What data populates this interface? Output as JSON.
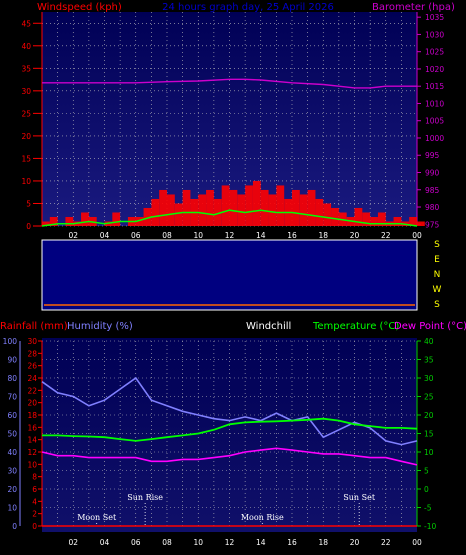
{
  "header_top": {
    "windspeed_label": "Windspeed (kph)",
    "date_label": "24 hours graph day, 25 April 2026",
    "barometer_label": "Barometer (hpa)"
  },
  "header_bottom": {
    "rainfall_label": "Rainfall (mm)",
    "humidity_label": "Humidity (%)",
    "windchill_label": "Windchill",
    "temperature_label": "Temperature (°C)",
    "dewpoint_label": "Dew Point (°C)"
  },
  "direction_labels": [
    "S",
    "E",
    "N",
    "W",
    "S"
  ],
  "events": [
    {
      "label": "Sun Rise",
      "time": 6.6
    },
    {
      "label": "Sun Set",
      "time": 20.3
    },
    {
      "label": "Moon Set",
      "time": 3.5
    },
    {
      "label": "Moon Rise",
      "time": 14.1
    }
  ],
  "colors": {
    "background": "#000000",
    "plot_bg_top": "#000066",
    "plot_bg_bottom": "#0a0a5a",
    "windspeed_gust": "#ff0000",
    "windspeed_avg": "#00ff00",
    "wind_calm": "#ffffff",
    "barometer": "#cc00cc",
    "humidity": "#8080ff",
    "temperature": "#00ff00",
    "dewpoint": "#ff00ff",
    "rain": "#ff0000",
    "date_text": "#0000cc",
    "direction_text": "#ffff00",
    "temp_axis": "#00cc00",
    "grid": "#c0c0c0"
  },
  "chart_data": [
    {
      "type": "line",
      "name": "wind-barometer",
      "x_ticks": [
        "02",
        "04",
        "06",
        "08",
        "10",
        "12",
        "14",
        "16",
        "18",
        "20",
        "22",
        "00"
      ],
      "x_range": [
        0,
        24
      ],
      "y_left_ticks": [
        "0",
        "5",
        "10",
        "15",
        "20",
        "25",
        "30",
        "35",
        "40",
        "45"
      ],
      "y_left_range": [
        0,
        47.5
      ],
      "y_right_ticks": [
        "975",
        "980",
        "985",
        "990",
        "995",
        "1000",
        "1005",
        "1010",
        "1015",
        "1020",
        "1025",
        "1030",
        "1035"
      ],
      "y_right_range": [
        974.5,
        1036.5
      ],
      "barometer": {
        "x": [
          0,
          2,
          4,
          6,
          8,
          10,
          12,
          13,
          14,
          16,
          18,
          19,
          20,
          21,
          22,
          23,
          24
        ],
        "y": [
          1016,
          1016,
          1016,
          1016,
          1016.3,
          1016.5,
          1017,
          1017,
          1016.8,
          1016,
          1015.5,
          1015,
          1014.5,
          1014.5,
          1015,
          1015,
          1015
        ]
      },
      "gust": {
        "x": [
          0,
          0.5,
          1,
          1.5,
          2,
          2.5,
          3,
          3.5,
          4,
          4.5,
          5,
          5.5,
          6,
          6.5,
          7,
          7.5,
          8,
          8.5,
          9,
          9.5,
          10,
          10.5,
          11,
          11.5,
          12,
          12.5,
          13,
          13.5,
          14,
          14.5,
          15,
          15.5,
          16,
          16.5,
          17,
          17.5,
          18,
          18.5,
          19,
          19.5,
          20,
          20.5,
          21,
          21.5,
          22,
          22.5,
          23,
          23.5,
          24
        ],
        "y": [
          1,
          2,
          0,
          2,
          1,
          3,
          2,
          0,
          1,
          3,
          0,
          2,
          2,
          4,
          6,
          8,
          7,
          5,
          8,
          6,
          7,
          8,
          6,
          9,
          8,
          7,
          9,
          10,
          8,
          7,
          9,
          6,
          8,
          7,
          8,
          6,
          5,
          4,
          3,
          2,
          4,
          3,
          2,
          3,
          1,
          2,
          1,
          2,
          1
        ]
      },
      "average": {
        "x": [
          0,
          1,
          2,
          3,
          4,
          5,
          6,
          7,
          8,
          9,
          10,
          11,
          12,
          13,
          14,
          15,
          16,
          17,
          18,
          19,
          20,
          21,
          22,
          23,
          24
        ],
        "y": [
          0,
          0.5,
          0.5,
          1,
          0.5,
          1,
          1,
          2,
          2.5,
          3,
          3,
          2.5,
          3.5,
          3,
          3.5,
          3,
          3,
          2.5,
          2,
          1.5,
          1,
          0.5,
          0.5,
          0.5,
          0
        ]
      }
    },
    {
      "type": "area",
      "name": "wind-direction",
      "direction_labels": [
        "S",
        "E",
        "N",
        "W",
        "S"
      ]
    },
    {
      "type": "line",
      "name": "rain-humidity-temperature",
      "x_ticks": [
        "02",
        "04",
        "06",
        "08",
        "10",
        "12",
        "14",
        "16",
        "18",
        "20",
        "22",
        "00"
      ],
      "x_range": [
        0,
        24
      ],
      "rain_ticks": [
        "0",
        "2",
        "4",
        "6",
        "8",
        "10",
        "12",
        "14",
        "16",
        "18",
        "20",
        "22",
        "24",
        "26",
        "28",
        "30"
      ],
      "rain_range": [
        0,
        30
      ],
      "humidity_ticks": [
        "0",
        "10",
        "20",
        "30",
        "40",
        "50",
        "60",
        "70",
        "80",
        "90",
        "100"
      ],
      "humidity_range": [
        0,
        100
      ],
      "temp_ticks": [
        "-10",
        "-5",
        "0",
        "5",
        "10",
        "15",
        "20",
        "25",
        "30",
        "35",
        "40"
      ],
      "temp_range": [
        -10,
        40
      ],
      "humidity": {
        "x": [
          0,
          1,
          2,
          3,
          4,
          5,
          6,
          7,
          8,
          9,
          10,
          11,
          12,
          13,
          14,
          15,
          16,
          17,
          18,
          19,
          20,
          21,
          22,
          23,
          24
        ],
        "y": [
          78,
          72,
          70,
          65,
          68,
          74,
          80,
          68,
          65,
          62,
          60,
          58,
          57,
          59,
          57,
          61,
          57,
          59,
          48,
          52,
          56,
          53,
          46,
          44,
          46
        ]
      },
      "temperature": {
        "x": [
          0,
          1,
          2,
          3,
          4,
          5,
          6,
          7,
          8,
          9,
          10,
          11,
          12,
          13,
          14,
          15,
          16,
          17,
          18,
          19,
          20,
          21,
          22,
          23,
          24
        ],
        "y": [
          14.5,
          14.5,
          14.3,
          14.2,
          14,
          13.5,
          13,
          13.5,
          14,
          14.5,
          15,
          16,
          17.5,
          18,
          18.2,
          18.3,
          18.5,
          18.7,
          19,
          18.5,
          17.5,
          17,
          16.5,
          16.5,
          16.3
        ]
      },
      "dewpoint": {
        "x": [
          0,
          1,
          2,
          3,
          4,
          5,
          6,
          7,
          8,
          9,
          10,
          11,
          12,
          13,
          14,
          15,
          16,
          17,
          18,
          19,
          20,
          21,
          22,
          23,
          24
        ],
        "y": [
          10,
          9,
          9,
          8.5,
          8.5,
          8.5,
          8.5,
          7.5,
          7.5,
          8,
          8,
          8.5,
          9,
          10,
          10.5,
          11,
          10.5,
          10,
          9.5,
          9.5,
          9,
          8.5,
          8.5,
          7.5,
          6.5
        ]
      },
      "rainfall": {
        "x": [
          0,
          24
        ],
        "y": [
          0,
          0
        ]
      }
    }
  ]
}
